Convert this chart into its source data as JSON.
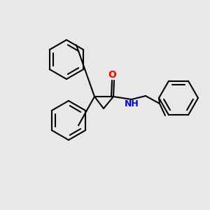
{
  "background_color": "#e8e8e8",
  "line_color": "#000000",
  "n_color": "#0000ff",
  "o_color": "#ff0000",
  "line_width": 1.5,
  "font_size": 9
}
